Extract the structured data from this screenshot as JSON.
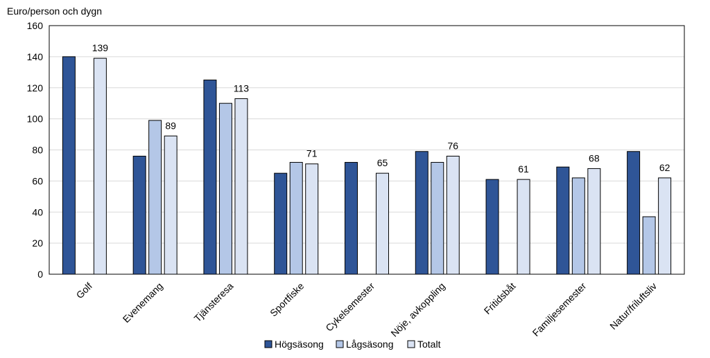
{
  "chart_data": {
    "type": "bar",
    "ylabel": "Euro/person och dygn",
    "ylim": [
      0,
      160
    ],
    "yticks": [
      0,
      20,
      40,
      60,
      80,
      100,
      120,
      140,
      160
    ],
    "grid": true,
    "legend_position": "bottom",
    "categories": [
      "Golf",
      "Evenemang",
      "Tjänsteresa",
      "Sportfiske",
      "Cykelsemester",
      "Nöje, avkoppling",
      "Fritidsbåt",
      "Familjesemester",
      "Natur/friluftsliv"
    ],
    "series": [
      {
        "name": "Högsäsong",
        "color": "#2f5597",
        "values": [
          140,
          76,
          125,
          65,
          72,
          79,
          61,
          69,
          79
        ]
      },
      {
        "name": "Lågsäsong",
        "color": "#b4c7e7",
        "values": [
          null,
          99,
          110,
          72,
          null,
          72,
          null,
          62,
          37
        ]
      },
      {
        "name": "Totalt",
        "color": "#dae3f3",
        "values": [
          139,
          89,
          113,
          71,
          65,
          76,
          61,
          68,
          62
        ]
      }
    ],
    "data_labels": {
      "series": "Totalt",
      "values": [
        "139",
        "89",
        "113",
        "71",
        "65",
        "76",
        "61",
        "68",
        "62"
      ]
    }
  }
}
